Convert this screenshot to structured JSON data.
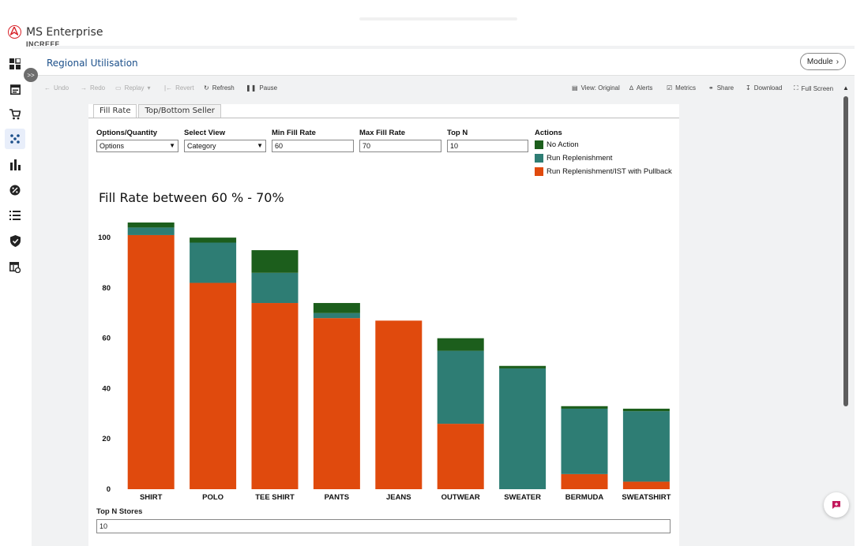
{
  "app": {
    "name": "MS Enterprise",
    "company": "INCREFF"
  },
  "header": {
    "title": "Regional Utilisation",
    "module_label": "Module"
  },
  "toolbar": {
    "undo": "Undo",
    "redo": "Redo",
    "replay": "Replay",
    "revert": "Revert",
    "refresh": "Refresh",
    "pause": "Pause",
    "view": "View: Original",
    "alerts": "Alerts",
    "metrics": "Metrics",
    "share": "Share",
    "download": "Download",
    "full_screen": "Full Screen"
  },
  "tabs": [
    {
      "label": "Fill Rate",
      "active": true
    },
    {
      "label": "Top/Bottom Seller",
      "active": false
    }
  ],
  "controls": {
    "options_quantity": {
      "label": "Options/Quantity",
      "value": "Options"
    },
    "select_view": {
      "label": "Select View",
      "value": "Category"
    },
    "min_fill_rate": {
      "label": "Min Fill Rate",
      "value": "60"
    },
    "max_fill_rate": {
      "label": "Max Fill Rate",
      "value": "70"
    },
    "top_n": {
      "label": "Top N",
      "value": "10"
    }
  },
  "legend": {
    "title": "Actions",
    "items": [
      {
        "label": "No Action",
        "color": "#1c5e1c"
      },
      {
        "label": "Run Replenishment",
        "color": "#2e7d74"
      },
      {
        "label": "Run Replenishment/IST with Pullback",
        "color": "#e04a0d"
      }
    ]
  },
  "chart_title": "Fill Rate between 60 % - 70%",
  "top_n_stores": {
    "label": "Top N Stores",
    "value": "10"
  },
  "chart_data": {
    "type": "bar",
    "stacked": true,
    "categories": [
      "SHIRT",
      "POLO",
      "TEE SHIRT",
      "PANTS",
      "JEANS",
      "OUTWEAR",
      "SWEATER",
      "BERMUDA",
      "SWEATSHIRT"
    ],
    "series": [
      {
        "name": "Run Replenishment/IST with Pullback",
        "color": "#e04a0d",
        "values": [
          101,
          82,
          74,
          68,
          67,
          26,
          0,
          6,
          3
        ]
      },
      {
        "name": "Run Replenishment",
        "color": "#2e7d74",
        "values": [
          3,
          16,
          12,
          2,
          0,
          29,
          48,
          26,
          28
        ]
      },
      {
        "name": "No Action",
        "color": "#1c5e1c",
        "values": [
          2,
          2,
          9,
          4,
          0,
          5,
          1,
          1,
          1
        ]
      }
    ],
    "y_ticks": [
      0,
      20,
      40,
      60,
      80,
      100
    ],
    "ylim": [
      0,
      106
    ],
    "grid": false
  }
}
